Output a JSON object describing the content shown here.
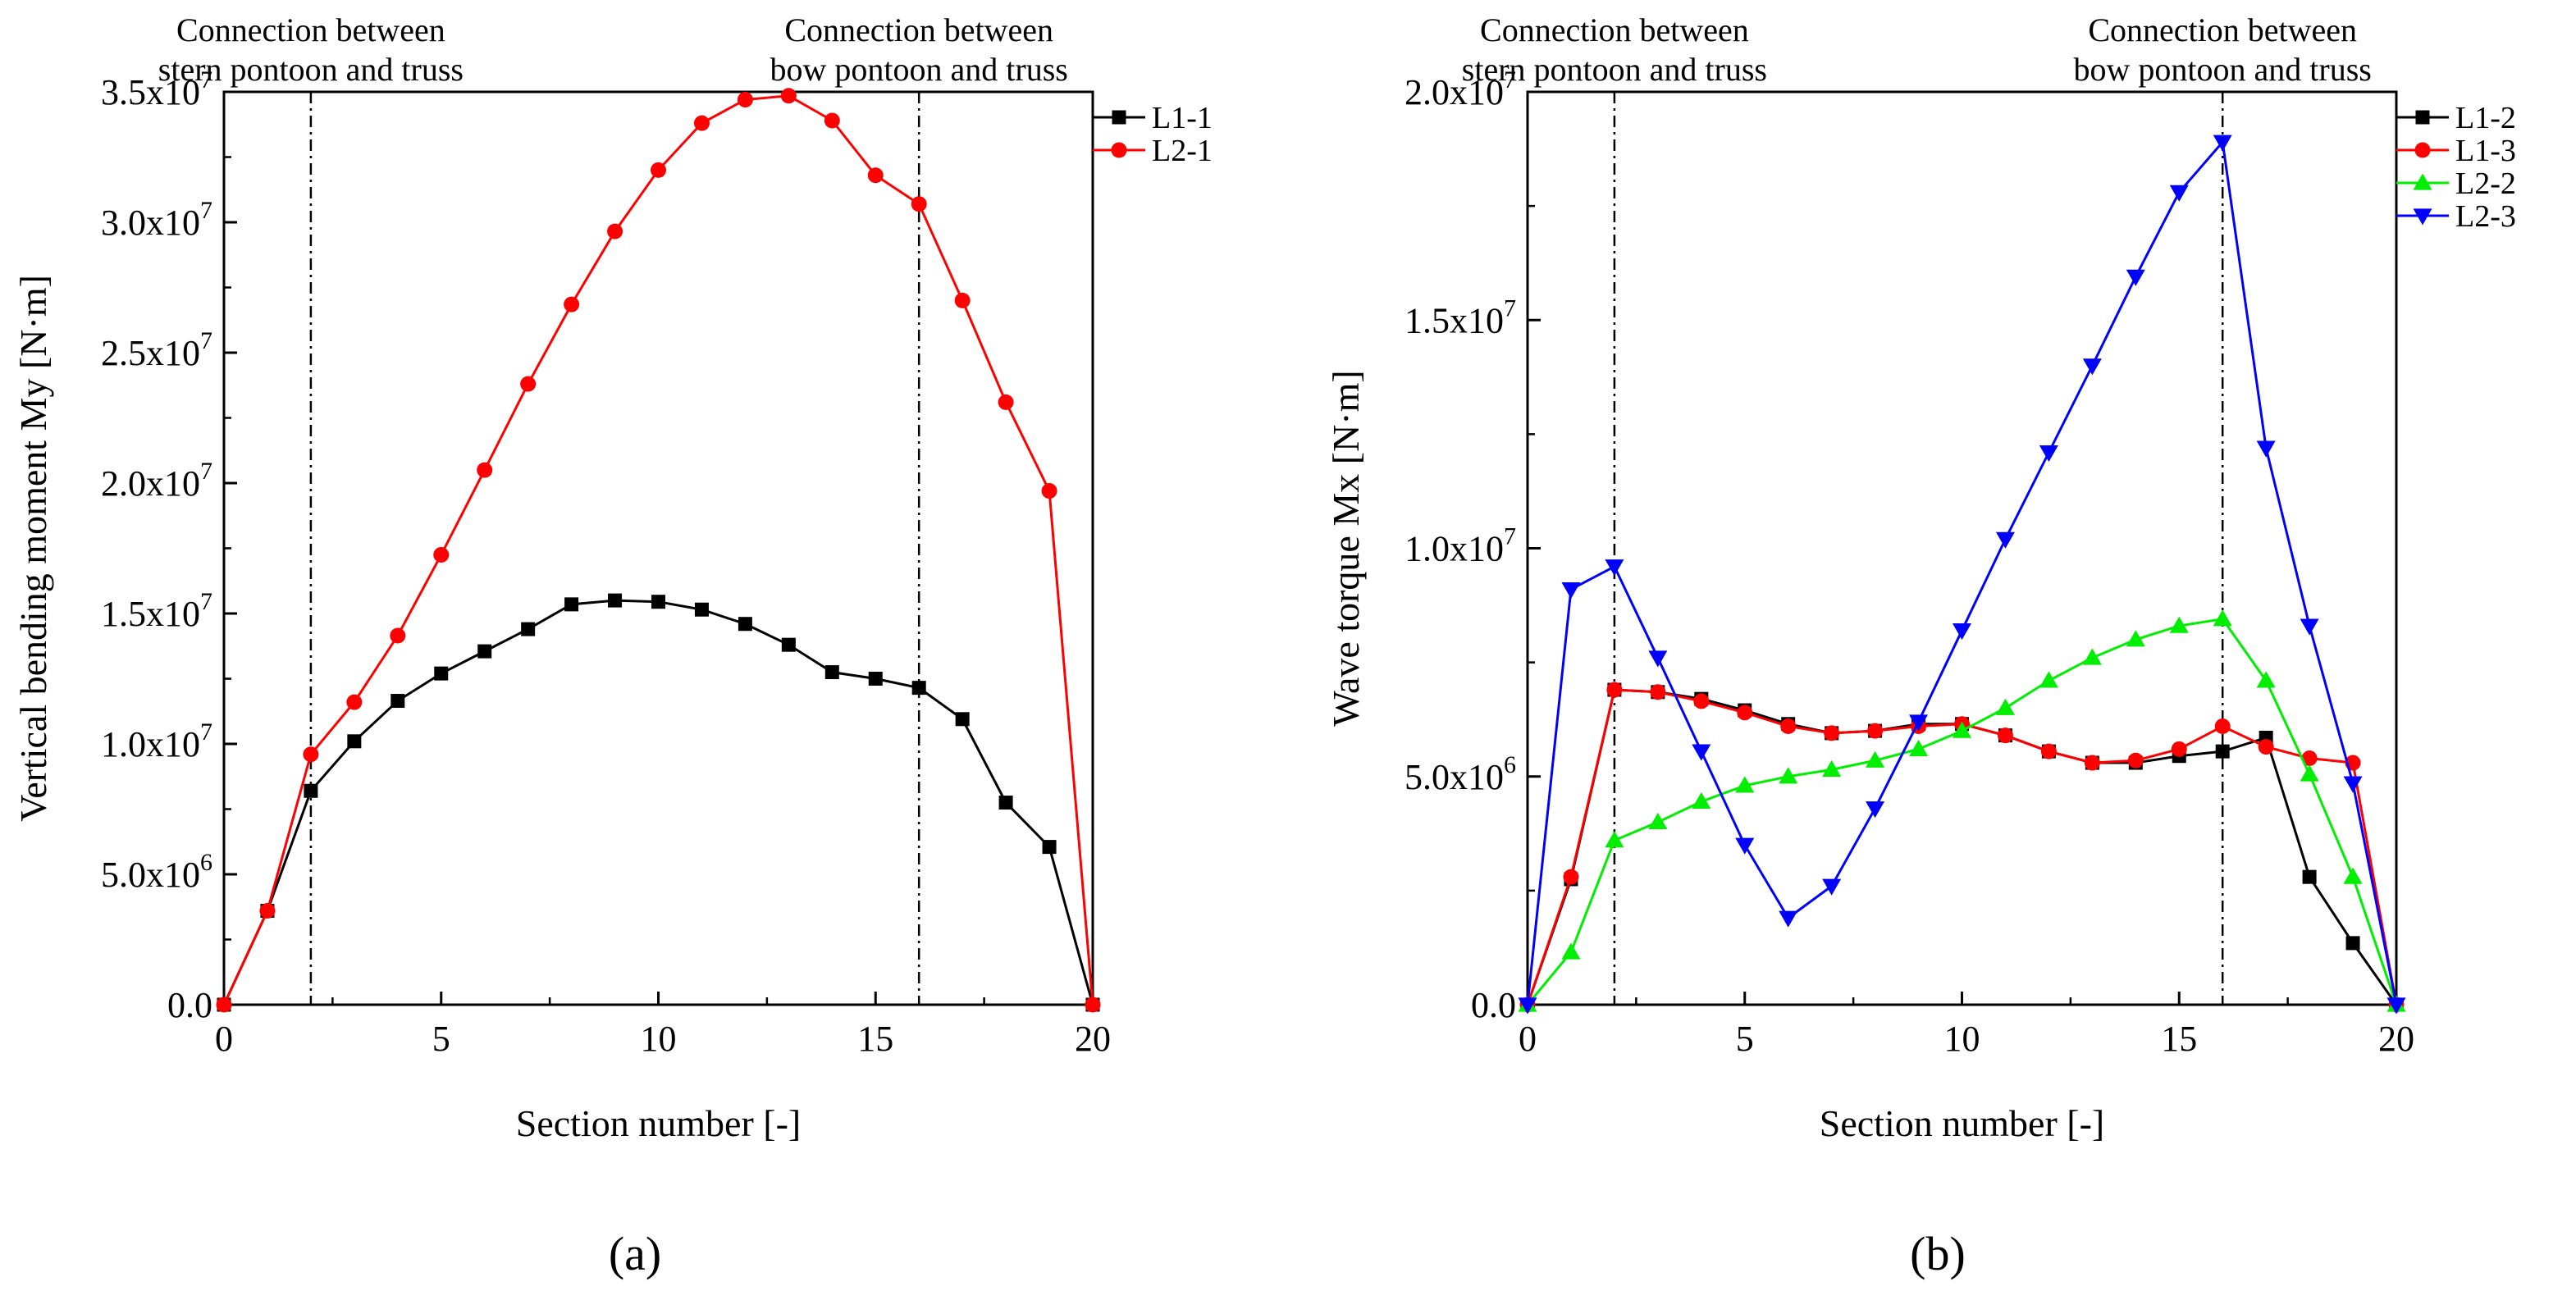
{
  "chart_data": [
    {
      "panel_label": "(a)",
      "type": "line",
      "xlabel": "Section number [-]",
      "ylabel": "Vertical bending moment My  [N·m]",
      "xlim": [
        0,
        20
      ],
      "ylim": [
        0,
        35000000
      ],
      "xticks": [
        0,
        5,
        10,
        15,
        20
      ],
      "xtick_labels": [
        "0",
        "5",
        "10",
        "15",
        "20"
      ],
      "yticks": [
        0,
        5000000,
        10000000,
        15000000,
        20000000,
        25000000,
        30000000,
        35000000
      ],
      "ytick_labels": [
        {
          "value": 0,
          "base": "0.0",
          "exp": ""
        },
        {
          "value": 5000000,
          "base": "5.0x10",
          "exp": "6"
        },
        {
          "value": 10000000,
          "base": "1.0x10",
          "exp": "7"
        },
        {
          "value": 15000000,
          "base": "1.5x10",
          "exp": "7"
        },
        {
          "value": 20000000,
          "base": "2.0x10",
          "exp": "7"
        },
        {
          "value": 25000000,
          "base": "2.5x10",
          "exp": "7"
        },
        {
          "value": 30000000,
          "base": "3.0x10",
          "exp": "7"
        },
        {
          "value": 35000000,
          "base": "3.5x10",
          "exp": "7"
        }
      ],
      "vlines": [
        2,
        16
      ],
      "annotations": [
        {
          "x": 2,
          "lines": [
            "Connection between",
            "stern pontoon and truss"
          ]
        },
        {
          "x": 16,
          "lines": [
            "Connection between",
            "bow pontoon and truss"
          ]
        }
      ],
      "x": [
        0,
        1,
        2,
        3,
        4,
        5,
        6,
        7,
        8,
        9,
        10,
        11,
        12,
        13,
        14,
        15,
        16,
        17,
        18,
        19,
        20
      ],
      "series": [
        {
          "name": "L1-1",
          "color": "#000000",
          "marker": "square",
          "values": [
            0,
            3600000,
            8200000,
            10100000,
            11650000,
            12700000,
            13550000,
            14400000,
            15350000,
            15500000,
            15450000,
            15150000,
            14600000,
            13800000,
            12750000,
            12500000,
            12150000,
            10950000,
            7750000,
            6050000,
            0
          ]
        },
        {
          "name": "L2-1",
          "color": "#ff0000",
          "marker": "circle",
          "values": [
            0,
            3600000,
            9600000,
            11600000,
            14150000,
            17250000,
            20500000,
            23800000,
            26850000,
            29650000,
            32000000,
            33800000,
            34700000,
            34850000,
            33900000,
            31800000,
            30700000,
            27000000,
            23100000,
            19700000,
            0
          ]
        }
      ]
    },
    {
      "panel_label": "(b)",
      "type": "line",
      "xlabel": "Section number [-]",
      "ylabel": "Wave torque Mx [N·m]",
      "xlim": [
        0,
        20
      ],
      "ylim": [
        0,
        20000000
      ],
      "xticks": [
        0,
        5,
        10,
        15,
        20
      ],
      "xtick_labels": [
        "0",
        "5",
        "10",
        "15",
        "20"
      ],
      "yticks": [
        0,
        5000000,
        10000000,
        15000000,
        20000000
      ],
      "ytick_labels": [
        {
          "value": 0,
          "base": "0.0",
          "exp": ""
        },
        {
          "value": 5000000,
          "base": "5.0x10",
          "exp": "6"
        },
        {
          "value": 10000000,
          "base": "1.0x10",
          "exp": "7"
        },
        {
          "value": 15000000,
          "base": "1.5x10",
          "exp": "7"
        },
        {
          "value": 20000000,
          "base": "2.0x10",
          "exp": "7"
        }
      ],
      "vlines": [
        2,
        16
      ],
      "annotations": [
        {
          "x": 2,
          "lines": [
            "Connection between",
            "stern pontoon and truss"
          ]
        },
        {
          "x": 16,
          "lines": [
            "Connection between",
            "bow pontoon and truss"
          ]
        }
      ],
      "x": [
        0,
        1,
        2,
        3,
        4,
        5,
        6,
        7,
        8,
        9,
        10,
        11,
        12,
        13,
        14,
        15,
        16,
        17,
        18,
        19,
        20
      ],
      "series": [
        {
          "name": "L1-2",
          "color": "#000000",
          "marker": "square",
          "values": [
            0,
            2750000,
            6900000,
            6850000,
            6700000,
            6450000,
            6150000,
            5950000,
            6000000,
            6150000,
            6150000,
            5900000,
            5550000,
            5300000,
            5300000,
            5450000,
            5550000,
            5850000,
            2800000,
            1350000,
            0
          ]
        },
        {
          "name": "L1-3",
          "color": "#ff0000",
          "marker": "circle",
          "values": [
            0,
            2800000,
            6900000,
            6850000,
            6650000,
            6400000,
            6100000,
            5950000,
            6000000,
            6100000,
            6150000,
            5900000,
            5550000,
            5300000,
            5350000,
            5600000,
            6100000,
            5650000,
            5400000,
            5300000,
            0
          ]
        },
        {
          "name": "L2-2",
          "color": "#00ee00",
          "marker": "triangle-up",
          "values": [
            0,
            1150000,
            3600000,
            4000000,
            4450000,
            4800000,
            5000000,
            5150000,
            5350000,
            5600000,
            6000000,
            6500000,
            7100000,
            7600000,
            8000000,
            8300000,
            8450000,
            7100000,
            5050000,
            2800000,
            0
          ]
        },
        {
          "name": "L2-3",
          "color": "#0000ff",
          "marker": "triangle-down",
          "values": [
            0,
            9100000,
            9600000,
            7600000,
            5550000,
            3500000,
            1900000,
            2600000,
            4300000,
            6200000,
            8200000,
            10200000,
            12100000,
            14000000,
            15950000,
            17800000,
            18900000,
            12200000,
            8300000,
            4850000,
            0
          ]
        }
      ]
    }
  ]
}
